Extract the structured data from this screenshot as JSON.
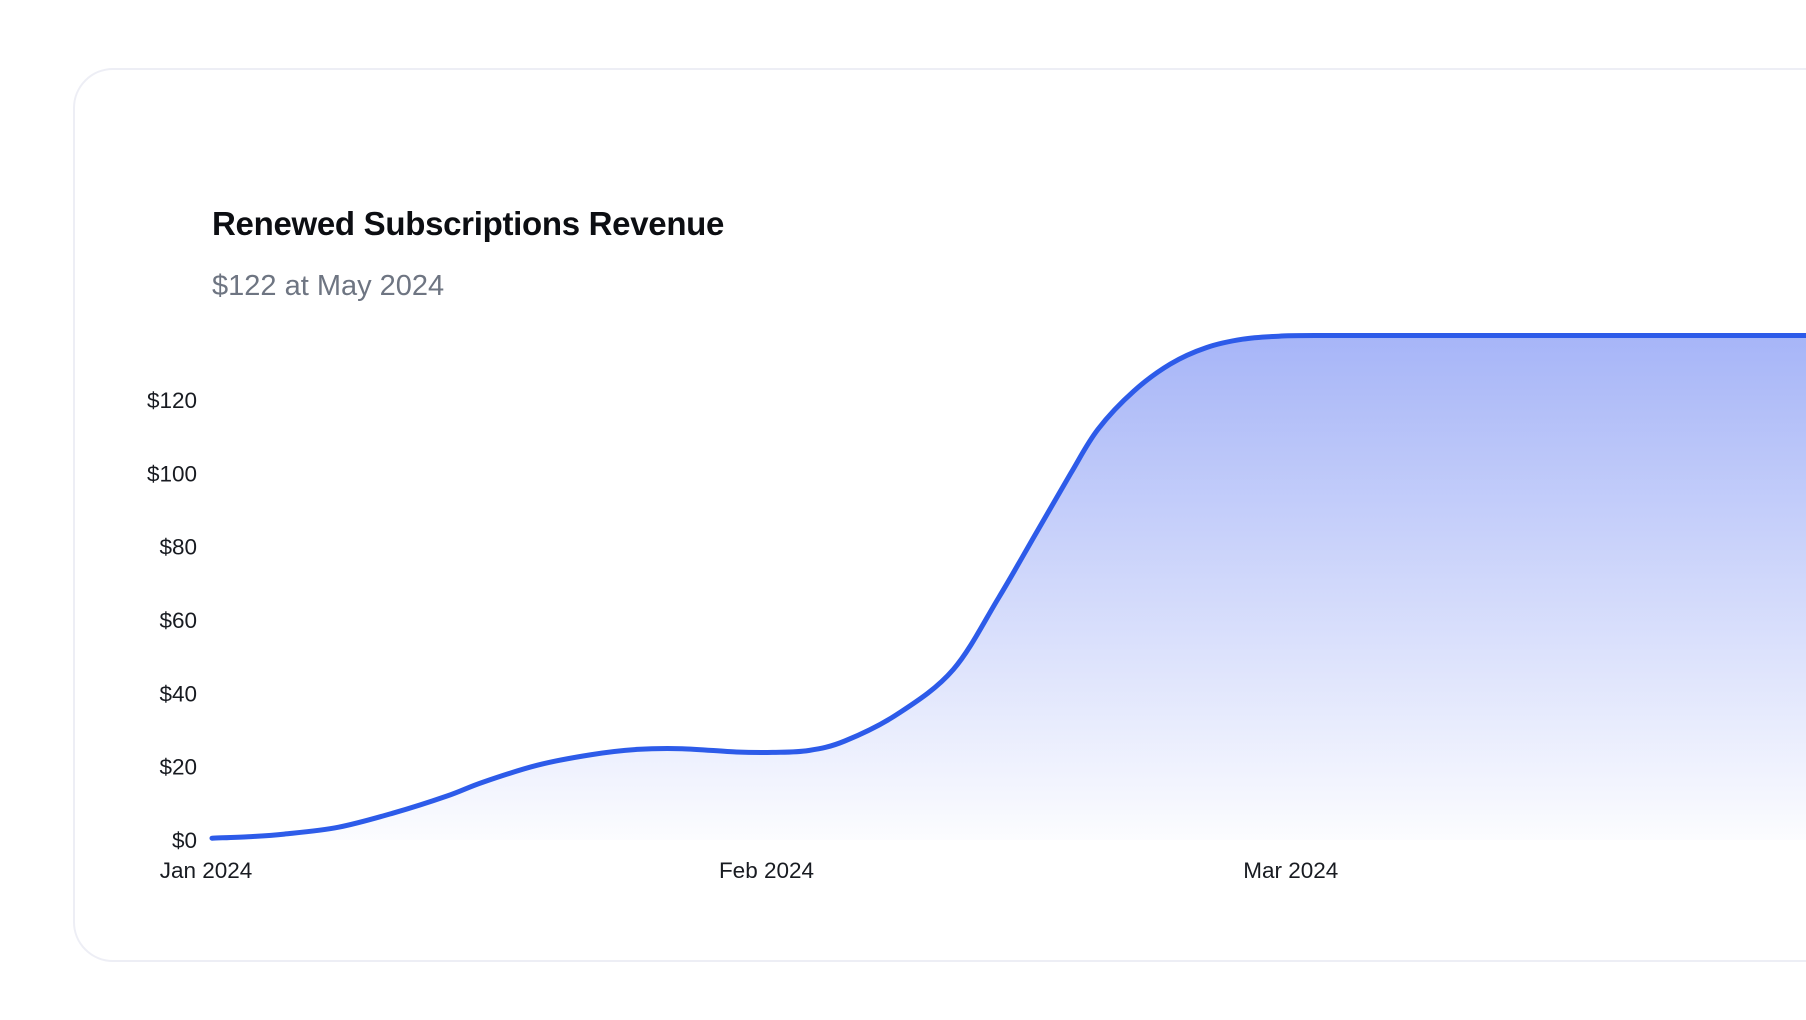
{
  "card": {
    "title": "Renewed Subscriptions Revenue",
    "subtitle": "$122 at May 2024"
  },
  "chart_data": {
    "type": "area",
    "title": "Renewed Subscriptions Revenue",
    "subtitle_current_value": "$122 at May 2024",
    "series_name": "Renewed Subscriptions Revenue ($)",
    "unit": "USD",
    "grid": false,
    "legend": false,
    "x_axis": {
      "type": "time",
      "start_label": "Jan 2024",
      "tick_labels": [
        "Jan 2024",
        "Feb 2024",
        "Mar 2024"
      ],
      "tick_days_from_jan1": [
        0,
        31,
        60
      ],
      "visible_days": [
        0,
        88
      ]
    },
    "y_axis": {
      "tick_labels": [
        "$0",
        "$20",
        "$40",
        "$60",
        "$80",
        "$100",
        "$120"
      ],
      "tick_values": [
        0,
        20,
        40,
        60,
        80,
        100,
        120
      ],
      "range": [
        0,
        140
      ]
    },
    "points": [
      {
        "day": 0,
        "value": 0.5
      },
      {
        "day": 2,
        "value": 0.9
      },
      {
        "day": 4,
        "value": 1.6
      },
      {
        "day": 7,
        "value": 3.5
      },
      {
        "day": 10,
        "value": 7.3
      },
      {
        "day": 13,
        "value": 12
      },
      {
        "day": 15,
        "value": 15.8
      },
      {
        "day": 18,
        "value": 20.4
      },
      {
        "day": 21,
        "value": 23.3
      },
      {
        "day": 23.5,
        "value": 24.7
      },
      {
        "day": 26,
        "value": 24.9
      },
      {
        "day": 29,
        "value": 24.0
      },
      {
        "day": 31,
        "value": 23.9
      },
      {
        "day": 33,
        "value": 24.4
      },
      {
        "day": 35,
        "value": 27
      },
      {
        "day": 38,
        "value": 34.6
      },
      {
        "day": 41,
        "value": 46.5
      },
      {
        "day": 43.5,
        "value": 66
      },
      {
        "day": 45.5,
        "value": 83
      },
      {
        "day": 47.5,
        "value": 100
      },
      {
        "day": 49,
        "value": 112
      },
      {
        "day": 51,
        "value": 122.5
      },
      {
        "day": 53,
        "value": 129.8
      },
      {
        "day": 55,
        "value": 134.3
      },
      {
        "day": 57,
        "value": 136.6
      },
      {
        "day": 59,
        "value": 137.4
      },
      {
        "day": 61,
        "value": 137.6
      },
      {
        "day": 70,
        "value": 137.6
      },
      {
        "day": 80,
        "value": 137.6
      },
      {
        "day": 89,
        "value": 137.6
      }
    ],
    "colors": {
      "line": "#2d5be9",
      "area_top": "rgba(84,112,240,0.52)",
      "area_bottom": "rgba(84,112,240,0.02)"
    }
  }
}
